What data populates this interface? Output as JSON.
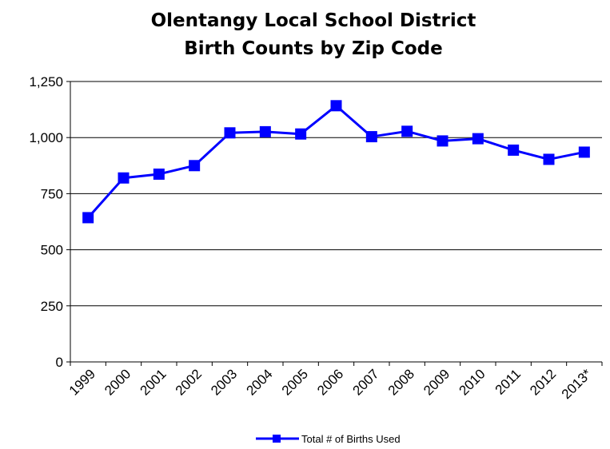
{
  "chart_data": {
    "type": "line",
    "title": "Olentangy Local School District",
    "subtitle": "Birth Counts by Zip Code",
    "xlabel": "",
    "ylabel": "",
    "categories": [
      "1999",
      "2000",
      "2001",
      "2002",
      "2003",
      "2004",
      "2005",
      "2006",
      "2007",
      "2008",
      "2009",
      "2010",
      "2011",
      "2012",
      "2013*"
    ],
    "series": [
      {
        "name": "Total # of Births Used",
        "color": "#0000ff",
        "values": [
          643,
          820,
          837,
          875,
          1021,
          1026,
          1016,
          1142,
          1004,
          1028,
          985,
          995,
          944,
          903,
          935
        ]
      }
    ],
    "ylim": [
      0,
      1250
    ],
    "yticks": [
      0,
      250,
      500,
      750,
      1000,
      1250
    ],
    "ytick_labels": [
      "0",
      "250",
      "500",
      "750",
      "1,000",
      "1,250"
    ],
    "grid": true,
    "legend": "bottom"
  }
}
